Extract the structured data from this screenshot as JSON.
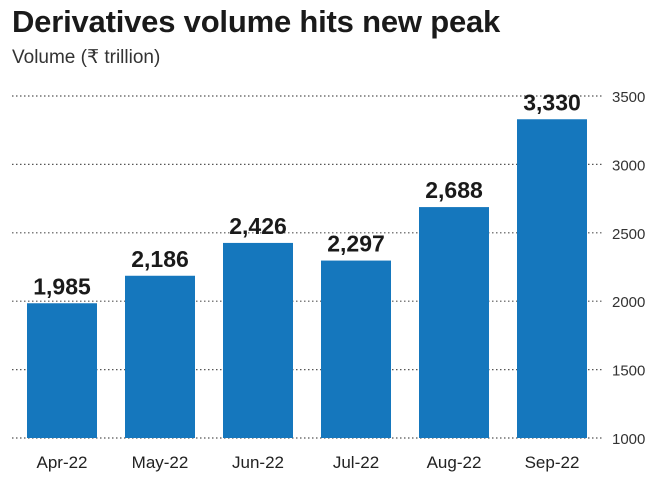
{
  "chart_data": {
    "type": "bar",
    "title": "Derivatives volume hits new peak",
    "subtitle": "Volume (₹ trillion)",
    "xlabel": "",
    "ylabel": "",
    "categories": [
      "Apr-22",
      "May-22",
      "Jun-22",
      "Jul-22",
      "Aug-22",
      "Sep-22"
    ],
    "values": [
      1985,
      2186,
      2426,
      2297,
      2688,
      3330
    ],
    "value_labels": [
      "1,985",
      "2,186",
      "2,426",
      "2,297",
      "2,688",
      "3,330"
    ],
    "ylim": [
      1000,
      3500
    ],
    "yticks": [
      1000,
      1500,
      2000,
      2500,
      3000,
      3500
    ],
    "ytick_labels": [
      "1000",
      "1500",
      "2000",
      "2500",
      "3000",
      "3500"
    ],
    "yaxis_side": "right",
    "grid": "horizontal-dotted",
    "bar_color": "#1577bd",
    "grid_color": "#555555"
  }
}
